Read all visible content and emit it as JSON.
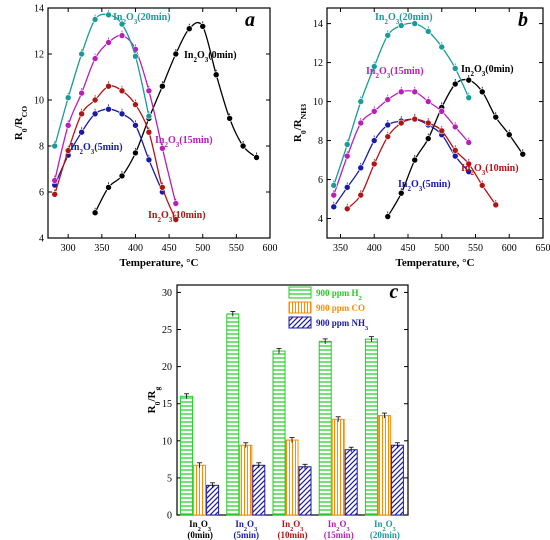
{
  "chart_data": [
    {
      "panel": "a",
      "type": "scatter",
      "xlabel": "Temperature, °C",
      "ylabel": "R0/RCO",
      "xlim": [
        270,
        600
      ],
      "ylim": [
        4,
        14
      ],
      "xticks": [
        300,
        350,
        400,
        450,
        500,
        550,
        600
      ],
      "yticks": [
        4,
        6,
        8,
        10,
        12,
        14
      ],
      "series": [
        {
          "name": "In2O3(0min)",
          "color": "#000000",
          "x": [
            340,
            360,
            380,
            400,
            420,
            440,
            460,
            480,
            500,
            520,
            540,
            560,
            580
          ],
          "y": [
            5.1,
            6.2,
            6.7,
            7.7,
            9.2,
            10.6,
            12.0,
            13.1,
            13.2,
            11.1,
            9.2,
            8.0,
            7.5
          ]
        },
        {
          "name": "In2O3(5min)",
          "color": "#1a1aa6",
          "x": [
            280,
            300,
            320,
            340,
            360,
            380,
            400,
            420,
            440
          ],
          "y": [
            6.3,
            7.6,
            8.6,
            9.4,
            9.6,
            9.4,
            8.9,
            7.4,
            6.0
          ]
        },
        {
          "name": "In2O3(10min)",
          "color": "#b01515",
          "x": [
            280,
            300,
            320,
            340,
            360,
            380,
            400,
            420,
            440,
            460
          ],
          "y": [
            5.9,
            7.8,
            9.4,
            10.0,
            10.6,
            10.4,
            9.8,
            8.6,
            6.2,
            4.8
          ]
        },
        {
          "name": "In2O3(15min)",
          "color": "#b81fb8",
          "x": [
            280,
            300,
            320,
            340,
            360,
            380,
            400,
            420,
            440,
            460
          ],
          "y": [
            6.5,
            8.9,
            10.3,
            11.8,
            12.5,
            12.8,
            12.2,
            10.4,
            7.9,
            5.5
          ]
        },
        {
          "name": "In2O3(20min)",
          "color": "#1b9a9a",
          "x": [
            280,
            300,
            320,
            340,
            360,
            380,
            400,
            420
          ],
          "y": [
            8.0,
            10.1,
            12.0,
            13.5,
            13.7,
            13.3,
            11.9,
            9.3
          ]
        }
      ],
      "annotations": [
        "In2O3(20min)",
        "In2O3(0min)",
        "In2O3(15min)",
        "In2O3(5min)",
        "In2O3(10min)"
      ]
    },
    {
      "panel": "b",
      "type": "scatter",
      "xlabel": "Temperature, °C",
      "ylabel": "R0/RNH3",
      "xlim": [
        330,
        650
      ],
      "ylim": [
        3,
        14.8
      ],
      "xticks": [
        350,
        400,
        450,
        500,
        550,
        600,
        650
      ],
      "yticks": [
        4,
        6,
        8,
        10,
        12,
        14
      ],
      "series": [
        {
          "name": "In2O3(0min)",
          "color": "#000000",
          "x": [
            420,
            440,
            460,
            480,
            500,
            520,
            540,
            560,
            580,
            600,
            620
          ],
          "y": [
            4.1,
            5.3,
            7.0,
            8.1,
            9.7,
            10.9,
            11.1,
            10.5,
            9.2,
            8.3,
            7.3
          ]
        },
        {
          "name": "In2O3(5min)",
          "color": "#1a1aa6",
          "x": [
            340,
            360,
            380,
            400,
            420,
            440,
            460,
            480,
            500,
            520,
            540
          ],
          "y": [
            4.6,
            5.6,
            6.6,
            8.0,
            8.8,
            9.0,
            9.1,
            8.8,
            8.3,
            7.2,
            6.4
          ]
        },
        {
          "name": "In2O3(10min)",
          "color": "#b01515",
          "x": [
            360,
            380,
            400,
            420,
            440,
            460,
            480,
            500,
            520,
            540,
            560,
            580
          ],
          "y": [
            4.5,
            5.2,
            6.8,
            8.2,
            8.9,
            9.1,
            8.9,
            8.5,
            7.5,
            6.8,
            5.7,
            4.7
          ]
        },
        {
          "name": "In2O3(15min)",
          "color": "#b81fb8",
          "x": [
            340,
            360,
            380,
            400,
            420,
            440,
            460,
            480,
            500,
            520,
            540
          ],
          "y": [
            5.2,
            7.2,
            8.9,
            9.5,
            10.1,
            10.5,
            10.5,
            10.0,
            9.5,
            8.7,
            7.9
          ]
        },
        {
          "name": "In2O3(20min)",
          "color": "#1b9a9a",
          "x": [
            340,
            360,
            380,
            400,
            420,
            440,
            460,
            480,
            500,
            520,
            540
          ],
          "y": [
            5.7,
            7.8,
            10.0,
            11.8,
            13.4,
            13.9,
            14.0,
            13.6,
            12.8,
            11.7,
            10.2
          ]
        }
      ],
      "annotations": [
        "In2O3(20min)",
        "In2O3(15min)",
        "In2O3(0min)",
        "In2O3(10min)",
        "In2O3(5min)"
      ]
    },
    {
      "panel": "c",
      "type": "bar",
      "ylabel": "R0/Rg",
      "ylim": [
        0,
        31
      ],
      "yticks": [
        0,
        5,
        10,
        15,
        20,
        25,
        30
      ],
      "categories": [
        "In2O3 (0min)",
        "In2O3 (5min)",
        "In2O3 (10min)",
        "In2O3 (15min)",
        "In2O3 (20min)"
      ],
      "category_colors": [
        "#000000",
        "#1a1aa6",
        "#b01515",
        "#b81fb8",
        "#1b9a9a"
      ],
      "series": [
        {
          "name": "900 ppm H2",
          "color": "#22cc22",
          "values": [
            16.0,
            27.1,
            22.1,
            23.4,
            23.7
          ]
        },
        {
          "name": "900 ppm CO",
          "color": "#ff8c00",
          "values": [
            6.7,
            9.4,
            10.1,
            12.9,
            13.4
          ]
        },
        {
          "name": "900 ppm NH3",
          "color": "#1a1aa6",
          "values": [
            4.0,
            6.7,
            6.5,
            8.8,
            9.4
          ]
        }
      ],
      "legend_position": "top-right"
    }
  ],
  "panel_letters": [
    "a",
    "b",
    "c"
  ]
}
